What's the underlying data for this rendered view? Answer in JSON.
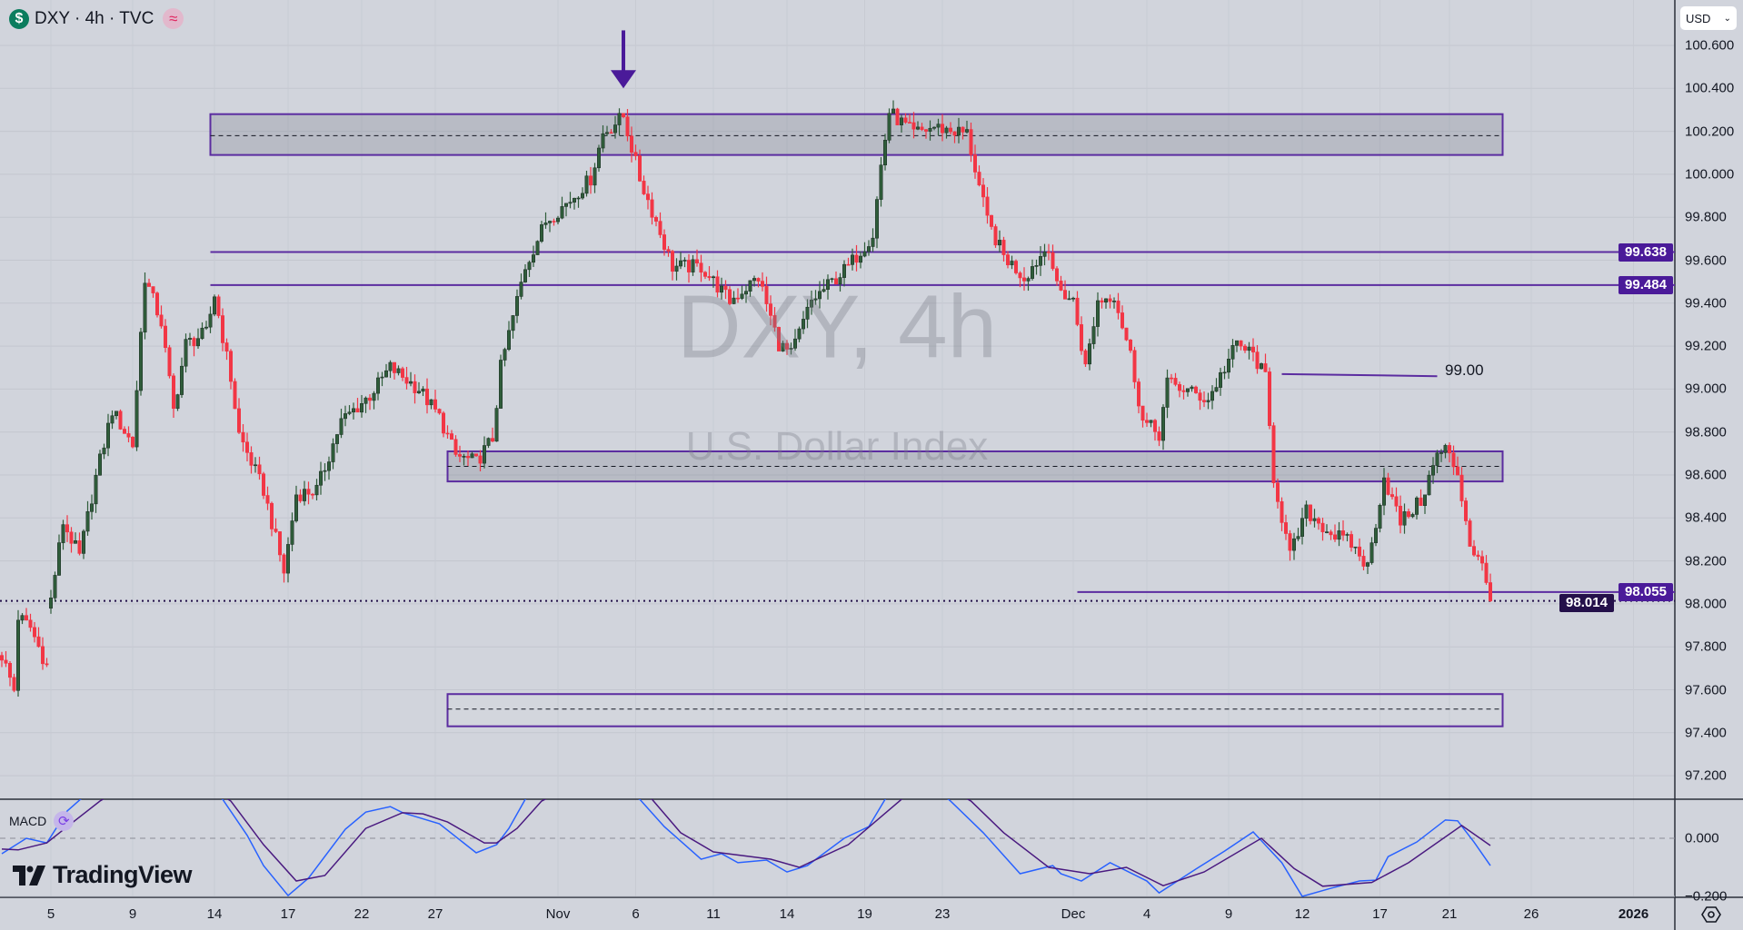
{
  "header": {
    "symbol_icon": "dollar-icon",
    "title": "DXY · 4h · TVC",
    "indicator_icon": "approx-wave-icon"
  },
  "currency_select": {
    "value": "USD"
  },
  "watermark": {
    "title": "DXY, 4h",
    "subtitle": "U.S. Dollar Index"
  },
  "macd": {
    "label": "MACD",
    "icon": "refresh-icon"
  },
  "logo": {
    "text": "TradingView"
  },
  "settings_icon": "settings-icon",
  "colors": {
    "background": "#d1d4dc",
    "up": "#2f5d3a",
    "down": "#f23645",
    "annotation": "#5b2ca0",
    "badge": "#4a1a99",
    "last_price_badge": "#24104a",
    "macd_line": "#2962ff",
    "signal_line": "#4a1a80"
  },
  "chart_data": [
    {
      "type": "candlestick",
      "x_unit": "4h bar index",
      "yaxis": {
        "range": [
          97.1,
          100.72
        ],
        "ticks": [
          "100.600",
          "100.400",
          "100.200",
          "100.000",
          "99.800",
          "99.600",
          "99.400",
          "99.200",
          "99.000",
          "98.800",
          "98.600",
          "98.400",
          "98.200",
          "98.000",
          "97.800",
          "97.600",
          "97.400",
          "97.200"
        ],
        "tick_values": [
          100.6,
          100.4,
          100.2,
          100.0,
          99.8,
          99.6,
          99.4,
          99.2,
          99.0,
          98.8,
          98.6,
          98.4,
          98.2,
          98.0,
          97.8,
          97.6,
          97.4,
          97.2
        ]
      },
      "xaxis": {
        "ticks": [
          {
            "label": "5",
            "bar": 12
          },
          {
            "label": "9",
            "bar": 32
          },
          {
            "label": "14",
            "bar": 52
          },
          {
            "label": "17",
            "bar": 70
          },
          {
            "label": "22",
            "bar": 88
          },
          {
            "label": "27",
            "bar": 106
          },
          {
            "label": "Nov",
            "bar": 136
          },
          {
            "label": "6",
            "bar": 155
          },
          {
            "label": "11",
            "bar": 174
          },
          {
            "label": "14",
            "bar": 192
          },
          {
            "label": "19",
            "bar": 211
          },
          {
            "label": "23",
            "bar": 230
          },
          {
            "label": "Dec",
            "bar": 262
          },
          {
            "label": "4",
            "bar": 280
          },
          {
            "label": "9",
            "bar": 300
          },
          {
            "label": "12",
            "bar": 318
          },
          {
            "label": "17",
            "bar": 337
          },
          {
            "label": "21",
            "bar": 354
          },
          {
            "label": "26",
            "bar": 374
          },
          {
            "label": "2026",
            "bar": 399,
            "bold": true
          }
        ]
      },
      "grid": true,
      "close_path": [
        [
          0,
          97.76
        ],
        [
          3,
          97.6
        ],
        [
          4,
          97.94
        ],
        [
          7,
          97.89
        ],
        [
          11,
          97.71
        ],
        [
          12,
          98.02
        ],
        [
          15,
          98.38
        ],
        [
          19,
          98.22
        ],
        [
          23,
          98.59
        ],
        [
          27,
          98.9
        ],
        [
          32,
          98.74
        ],
        [
          35,
          99.52
        ],
        [
          39,
          99.31
        ],
        [
          42,
          98.9
        ],
        [
          45,
          99.21
        ],
        [
          50,
          99.26
        ],
        [
          52,
          99.44
        ],
        [
          56,
          99.05
        ],
        [
          58,
          98.79
        ],
        [
          64,
          98.53
        ],
        [
          69,
          98.15
        ],
        [
          72,
          98.51
        ],
        [
          77,
          98.53
        ],
        [
          83,
          98.85
        ],
        [
          90,
          98.97
        ],
        [
          95,
          99.1
        ],
        [
          102,
          99.0
        ],
        [
          107,
          98.87
        ],
        [
          111,
          98.69
        ],
        [
          116,
          98.66
        ],
        [
          120,
          98.77
        ],
        [
          122,
          99.1
        ],
        [
          128,
          99.57
        ],
        [
          133,
          99.78
        ],
        [
          139,
          99.88
        ],
        [
          144,
          99.98
        ],
        [
          147,
          100.19
        ],
        [
          152,
          100.27
        ],
        [
          156,
          99.98
        ],
        [
          160,
          99.78
        ],
        [
          164,
          99.57
        ],
        [
          171,
          99.57
        ],
        [
          178,
          99.41
        ],
        [
          185,
          99.52
        ],
        [
          190,
          99.21
        ],
        [
          193,
          99.16
        ],
        [
          198,
          99.41
        ],
        [
          207,
          99.57
        ],
        [
          213,
          99.72
        ],
        [
          215,
          100.04
        ],
        [
          217,
          100.29
        ],
        [
          223,
          100.19
        ],
        [
          228,
          100.22
        ],
        [
          236,
          100.19
        ],
        [
          241,
          99.78
        ],
        [
          245,
          99.62
        ],
        [
          250,
          99.52
        ],
        [
          256,
          99.67
        ],
        [
          258,
          99.47
        ],
        [
          262,
          99.41
        ],
        [
          265,
          99.1
        ],
        [
          268,
          99.41
        ],
        [
          272,
          99.44
        ],
        [
          276,
          99.16
        ],
        [
          279,
          98.85
        ],
        [
          283,
          98.79
        ],
        [
          285,
          99.03
        ],
        [
          289,
          99.0
        ],
        [
          295,
          98.95
        ],
        [
          302,
          99.21
        ],
        [
          306,
          99.16
        ],
        [
          309,
          99.05
        ],
        [
          311,
          98.59
        ],
        [
          315,
          98.22
        ],
        [
          319,
          98.43
        ],
        [
          325,
          98.33
        ],
        [
          330,
          98.28
        ],
        [
          334,
          98.17
        ],
        [
          338,
          98.59
        ],
        [
          342,
          98.38
        ],
        [
          347,
          98.48
        ],
        [
          351,
          98.69
        ],
        [
          353,
          98.72
        ],
        [
          356,
          98.61
        ],
        [
          359,
          98.28
        ],
        [
          362,
          98.17
        ],
        [
          364,
          98.02
        ]
      ],
      "last_price": {
        "value": 98.014,
        "label": "98.014"
      },
      "annotations": {
        "zones": [
          {
            "from_bar": 51,
            "to_bar": 367,
            "top": 100.28,
            "bottom": 100.09,
            "mid": 100.18,
            "filled": true
          },
          {
            "from_bar": 109,
            "to_bar": 367,
            "top": 98.71,
            "bottom": 98.57,
            "mid": 98.64,
            "filled": true
          },
          {
            "from_bar": 109,
            "to_bar": 367,
            "top": 97.58,
            "bottom": 97.43,
            "mid": 97.51,
            "filled": false
          }
        ],
        "levels": [
          {
            "price": 99.638,
            "label": "99.638",
            "from_bar": 51
          },
          {
            "price": 99.484,
            "label": "99.484",
            "from_bar": 51
          },
          {
            "price": 98.055,
            "label": "98.055",
            "from_bar": 263
          }
        ],
        "trendline": {
          "from": [
            313,
            99.07
          ],
          "to": [
            351,
            99.06
          ],
          "label": "99.00"
        },
        "arrow": {
          "bar": 152,
          "from_price": 100.67,
          "to_price": 100.4,
          "direction": "down"
        }
      }
    },
    {
      "type": "line",
      "title": "MACD",
      "yaxis": {
        "ticks": [
          "0.000",
          "−0.200"
        ],
        "tick_values": [
          0,
          -0.2
        ]
      },
      "series": [
        {
          "values": [
            [
              0,
              -0.053
            ],
            [
              6,
              0
            ],
            [
              11,
              -0.016
            ],
            [
              16,
              0.094
            ],
            [
              21,
              0.156
            ],
            [
              30,
              0.24
            ],
            [
              45,
              0.22
            ],
            [
              54,
              0.134
            ],
            [
              60,
              0.01
            ],
            [
              64,
              -0.094
            ],
            [
              70,
              -0.197
            ],
            [
              75,
              -0.137
            ],
            [
              84,
              0.031
            ],
            [
              89,
              0.09
            ],
            [
              95,
              0.109
            ],
            [
              98,
              0.088
            ],
            [
              107,
              0.05
            ],
            [
              116,
              -0.05
            ],
            [
              121,
              -0.022
            ],
            [
              124,
              0.034
            ],
            [
              128,
              0.134
            ],
            [
              140,
              0.25
            ],
            [
              156,
              0.134
            ],
            [
              162,
              0.04
            ],
            [
              171,
              -0.072
            ],
            [
              176,
              -0.053
            ],
            [
              180,
              -0.084
            ],
            [
              187,
              -0.075
            ],
            [
              192,
              -0.116
            ],
            [
              197,
              -0.094
            ],
            [
              206,
              0
            ],
            [
              212,
              0.04
            ],
            [
              216,
              0.134
            ],
            [
              224,
              0.22
            ],
            [
              232,
              0.128
            ],
            [
              240,
              0.019
            ],
            [
              249,
              -0.122
            ],
            [
              257,
              -0.094
            ],
            [
              259,
              -0.122
            ],
            [
              264,
              -0.147
            ],
            [
              271,
              -0.084
            ],
            [
              280,
              -0.147
            ],
            [
              283,
              -0.188
            ],
            [
              292,
              -0.106
            ],
            [
              299,
              -0.044
            ],
            [
              306,
              0.022
            ],
            [
              313,
              -0.084
            ],
            [
              318,
              -0.2
            ],
            [
              325,
              -0.172
            ],
            [
              332,
              -0.147
            ],
            [
              336,
              -0.144
            ],
            [
              339,
              -0.063
            ],
            [
              346,
              -0.013
            ],
            [
              353,
              0.063
            ],
            [
              356,
              0.06
            ],
            [
              360,
              -0.013
            ],
            [
              364,
              -0.094
            ]
          ]
        },
        {
          "values": [
            [
              0,
              -0.037
            ],
            [
              4,
              -0.04
            ],
            [
              11,
              -0.016
            ],
            [
              16,
              0.04
            ],
            [
              24,
              0.128
            ],
            [
              35,
              0.22
            ],
            [
              48,
              0.2
            ],
            [
              56,
              0.128
            ],
            [
              64,
              -0.022
            ],
            [
              72,
              -0.147
            ],
            [
              79,
              -0.128
            ],
            [
              89,
              0.034
            ],
            [
              98,
              0.088
            ],
            [
              103,
              0.084
            ],
            [
              109,
              0.056
            ],
            [
              118,
              -0.016
            ],
            [
              121,
              -0.016
            ],
            [
              126,
              0.034
            ],
            [
              132,
              0.128
            ],
            [
              145,
              0.22
            ],
            [
              159,
              0.134
            ],
            [
              166,
              0.019
            ],
            [
              174,
              -0.047
            ],
            [
              188,
              -0.072
            ],
            [
              195,
              -0.1
            ],
            [
              207,
              -0.022
            ],
            [
              220,
              0.134
            ],
            [
              228,
              0.2
            ],
            [
              237,
              0.128
            ],
            [
              245,
              0.019
            ],
            [
              256,
              -0.1
            ],
            [
              266,
              -0.122
            ],
            [
              275,
              -0.1
            ],
            [
              284,
              -0.163
            ],
            [
              294,
              -0.116
            ],
            [
              308,
              0
            ],
            [
              316,
              -0.104
            ],
            [
              323,
              -0.165
            ],
            [
              335,
              -0.152
            ],
            [
              344,
              -0.084
            ],
            [
              357,
              0.044
            ],
            [
              364,
              -0.025
            ]
          ]
        }
      ]
    }
  ]
}
